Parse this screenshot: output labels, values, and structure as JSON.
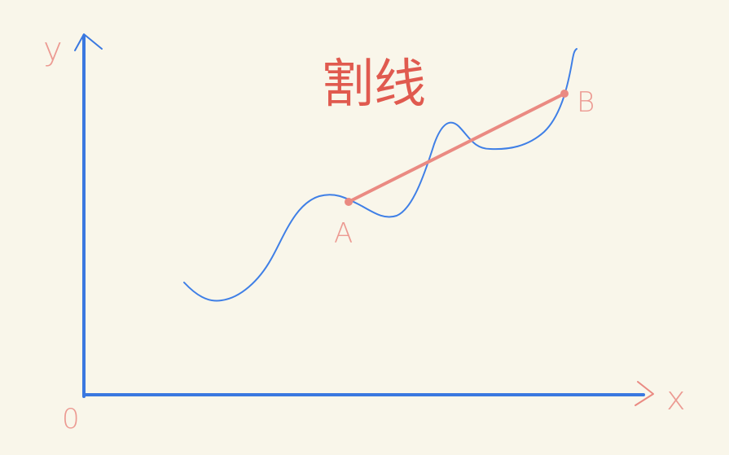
{
  "title": "割线",
  "axes": {
    "y_label": "y",
    "x_label": "x",
    "origin_label": "0"
  },
  "points": {
    "a_label": "A",
    "b_label": "B"
  },
  "colors": {
    "background": "#f9f6ea",
    "axis_blue": "#3a78e0",
    "curve_blue": "#3f7fe6",
    "secant_red": "#ea8a82",
    "title_red": "#e05a4f",
    "label_pink": "#ec9a92"
  }
}
